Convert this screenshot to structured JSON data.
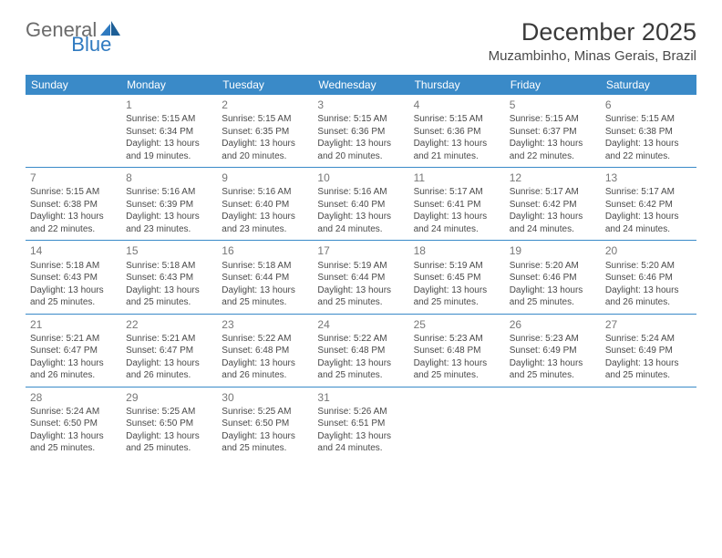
{
  "logo": {
    "part1": "General",
    "part2": "Blue"
  },
  "header": {
    "month_title": "December 2025",
    "location": "Muzambinho, Minas Gerais, Brazil"
  },
  "colors": {
    "header_bg": "#3a8ac8",
    "header_text": "#ffffff",
    "divider": "#3a8ac8",
    "daynum": "#777777",
    "body_text": "#4a4a4a",
    "logo_gray": "#6b6b6b",
    "logo_blue": "#2f7ac0"
  },
  "day_names": [
    "Sunday",
    "Monday",
    "Tuesday",
    "Wednesday",
    "Thursday",
    "Friday",
    "Saturday"
  ],
  "weeks": [
    [
      null,
      {
        "n": "1",
        "sr": "5:15 AM",
        "ss": "6:34 PM",
        "dl": "13 hours and 19 minutes."
      },
      {
        "n": "2",
        "sr": "5:15 AM",
        "ss": "6:35 PM",
        "dl": "13 hours and 20 minutes."
      },
      {
        "n": "3",
        "sr": "5:15 AM",
        "ss": "6:36 PM",
        "dl": "13 hours and 20 minutes."
      },
      {
        "n": "4",
        "sr": "5:15 AM",
        "ss": "6:36 PM",
        "dl": "13 hours and 21 minutes."
      },
      {
        "n": "5",
        "sr": "5:15 AM",
        "ss": "6:37 PM",
        "dl": "13 hours and 22 minutes."
      },
      {
        "n": "6",
        "sr": "5:15 AM",
        "ss": "6:38 PM",
        "dl": "13 hours and 22 minutes."
      }
    ],
    [
      {
        "n": "7",
        "sr": "5:15 AM",
        "ss": "6:38 PM",
        "dl": "13 hours and 22 minutes."
      },
      {
        "n": "8",
        "sr": "5:16 AM",
        "ss": "6:39 PM",
        "dl": "13 hours and 23 minutes."
      },
      {
        "n": "9",
        "sr": "5:16 AM",
        "ss": "6:40 PM",
        "dl": "13 hours and 23 minutes."
      },
      {
        "n": "10",
        "sr": "5:16 AM",
        "ss": "6:40 PM",
        "dl": "13 hours and 24 minutes."
      },
      {
        "n": "11",
        "sr": "5:17 AM",
        "ss": "6:41 PM",
        "dl": "13 hours and 24 minutes."
      },
      {
        "n": "12",
        "sr": "5:17 AM",
        "ss": "6:42 PM",
        "dl": "13 hours and 24 minutes."
      },
      {
        "n": "13",
        "sr": "5:17 AM",
        "ss": "6:42 PM",
        "dl": "13 hours and 24 minutes."
      }
    ],
    [
      {
        "n": "14",
        "sr": "5:18 AM",
        "ss": "6:43 PM",
        "dl": "13 hours and 25 minutes."
      },
      {
        "n": "15",
        "sr": "5:18 AM",
        "ss": "6:43 PM",
        "dl": "13 hours and 25 minutes."
      },
      {
        "n": "16",
        "sr": "5:18 AM",
        "ss": "6:44 PM",
        "dl": "13 hours and 25 minutes."
      },
      {
        "n": "17",
        "sr": "5:19 AM",
        "ss": "6:44 PM",
        "dl": "13 hours and 25 minutes."
      },
      {
        "n": "18",
        "sr": "5:19 AM",
        "ss": "6:45 PM",
        "dl": "13 hours and 25 minutes."
      },
      {
        "n": "19",
        "sr": "5:20 AM",
        "ss": "6:46 PM",
        "dl": "13 hours and 25 minutes."
      },
      {
        "n": "20",
        "sr": "5:20 AM",
        "ss": "6:46 PM",
        "dl": "13 hours and 26 minutes."
      }
    ],
    [
      {
        "n": "21",
        "sr": "5:21 AM",
        "ss": "6:47 PM",
        "dl": "13 hours and 26 minutes."
      },
      {
        "n": "22",
        "sr": "5:21 AM",
        "ss": "6:47 PM",
        "dl": "13 hours and 26 minutes."
      },
      {
        "n": "23",
        "sr": "5:22 AM",
        "ss": "6:48 PM",
        "dl": "13 hours and 26 minutes."
      },
      {
        "n": "24",
        "sr": "5:22 AM",
        "ss": "6:48 PM",
        "dl": "13 hours and 25 minutes."
      },
      {
        "n": "25",
        "sr": "5:23 AM",
        "ss": "6:48 PM",
        "dl": "13 hours and 25 minutes."
      },
      {
        "n": "26",
        "sr": "5:23 AM",
        "ss": "6:49 PM",
        "dl": "13 hours and 25 minutes."
      },
      {
        "n": "27",
        "sr": "5:24 AM",
        "ss": "6:49 PM",
        "dl": "13 hours and 25 minutes."
      }
    ],
    [
      {
        "n": "28",
        "sr": "5:24 AM",
        "ss": "6:50 PM",
        "dl": "13 hours and 25 minutes."
      },
      {
        "n": "29",
        "sr": "5:25 AM",
        "ss": "6:50 PM",
        "dl": "13 hours and 25 minutes."
      },
      {
        "n": "30",
        "sr": "5:25 AM",
        "ss": "6:50 PM",
        "dl": "13 hours and 25 minutes."
      },
      {
        "n": "31",
        "sr": "5:26 AM",
        "ss": "6:51 PM",
        "dl": "13 hours and 24 minutes."
      },
      null,
      null,
      null
    ]
  ],
  "labels": {
    "sunrise_prefix": "Sunrise: ",
    "sunset_prefix": "Sunset: ",
    "daylight_prefix": "Daylight: "
  }
}
